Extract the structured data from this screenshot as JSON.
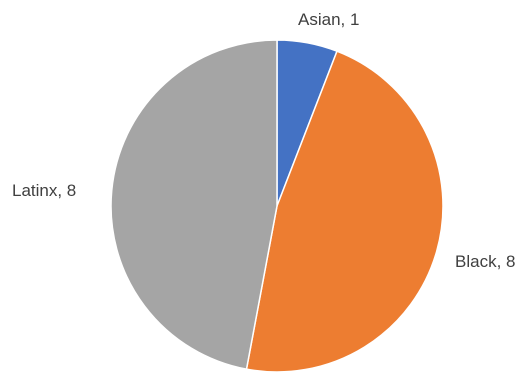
{
  "chart_data": {
    "type": "pie",
    "title": "",
    "slices": [
      {
        "label": "Asian",
        "value": 1,
        "color": "#4472C4",
        "data_label": "Asian, 1"
      },
      {
        "label": "Black",
        "value": 8,
        "color": "#ED7D31",
        "data_label": "Black, 8"
      },
      {
        "label": "Latinx",
        "value": 8,
        "color": "#A5A5A5",
        "data_label": "Latinx, 8"
      }
    ],
    "start_angle_deg": 0,
    "direction": "clockwise",
    "legend": "none"
  }
}
